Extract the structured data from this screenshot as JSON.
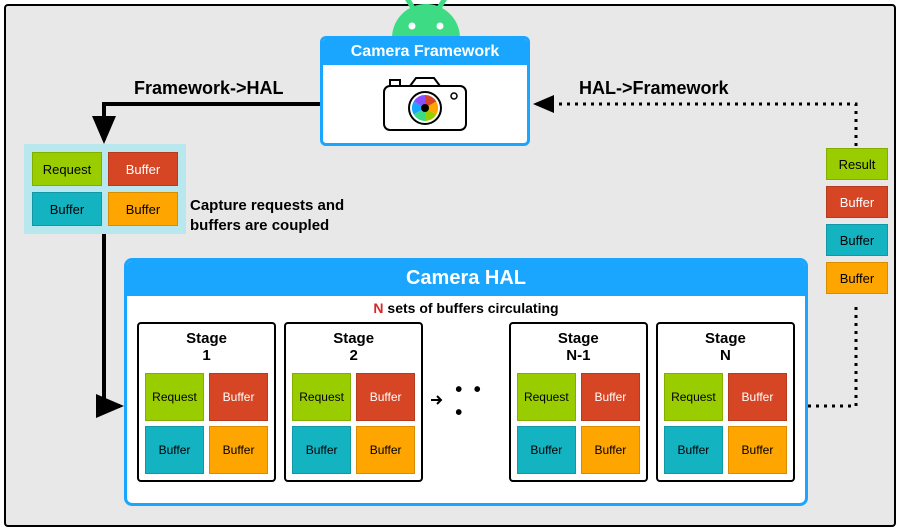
{
  "colors": {
    "bg": "#e8e8e8",
    "frame_blue": "#1aa6ff",
    "android_green": "#3ddc84",
    "request_green": "#9acd00",
    "buffer_red": "#d64524",
    "buffer_cyan": "#14b3c1",
    "buffer_orange": "#ffa500",
    "result_green": "#9acd00",
    "text_red": "#d62828",
    "black": "#000000",
    "white": "#ffffff",
    "light_cyan": "#b8e8ee"
  },
  "camera_framework": {
    "title": "Camera Framework"
  },
  "labels": {
    "fw_to_hal": "Framework->HAL",
    "hal_to_fw": "HAL->Framework",
    "coupled_caption": "Capture requests and buffers are coupled"
  },
  "coupled_box": {
    "tiles": [
      {
        "label": "Request",
        "color": "request_green"
      },
      {
        "label": "Buffer",
        "color": "buffer_red"
      },
      {
        "label": "Buffer",
        "color": "buffer_cyan"
      },
      {
        "label": "Buffer",
        "color": "buffer_orange"
      }
    ]
  },
  "hal": {
    "title": "Camera HAL",
    "subtitle_prefix": "N",
    "subtitle_rest": " sets of buffers circulating",
    "ellipsis": "• • •",
    "stages": [
      {
        "name": "Stage",
        "num": "1"
      },
      {
        "name": "Stage",
        "num": "2"
      },
      {
        "name": "Stage",
        "num": "N-1"
      },
      {
        "name": "Stage",
        "num": "N"
      }
    ],
    "stage_tiles": [
      {
        "label": "Request",
        "color": "request_green"
      },
      {
        "label": "Buffer",
        "color": "buffer_red"
      },
      {
        "label": "Buffer",
        "color": "buffer_cyan"
      },
      {
        "label": "Buffer",
        "color": "buffer_orange"
      }
    ]
  },
  "result_stack": [
    {
      "label": "Result",
      "color": "result_green"
    },
    {
      "label": "Buffer",
      "color": "buffer_red"
    },
    {
      "label": "Buffer",
      "color": "buffer_cyan"
    },
    {
      "label": "Buffer",
      "color": "buffer_orange"
    }
  ],
  "arrows": {
    "solid_width": 4,
    "dotted_width": 3,
    "dotted_dash": "3,5"
  }
}
